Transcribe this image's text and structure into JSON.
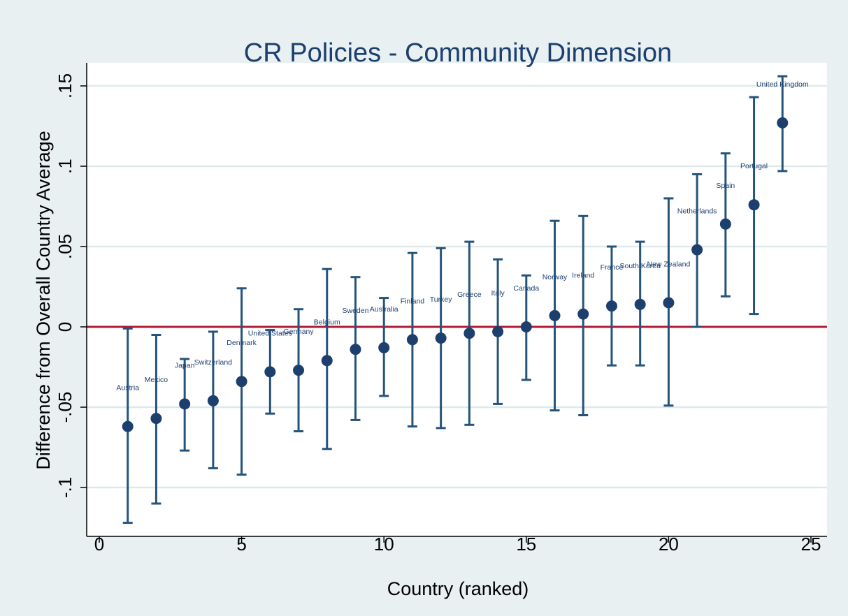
{
  "chart_data": {
    "type": "scatter",
    "title": "CR Policies - Community Dimension",
    "xlabel": "Country (ranked)",
    "ylabel": "Difference from Overall Country Average",
    "xlim": [
      0,
      25
    ],
    "ylim": [
      -0.13,
      0.165
    ],
    "x_ticks": [
      0,
      5,
      10,
      15,
      20,
      25
    ],
    "x_tick_labels": [
      "0",
      "5",
      "10",
      "15",
      "20",
      "25"
    ],
    "y_ticks": [
      -0.1,
      -0.05,
      0,
      0.05,
      0.1,
      0.15
    ],
    "y_tick_labels": [
      "-.1",
      "-.05",
      "0",
      ".05",
      ".1",
      ".15"
    ],
    "grid": true,
    "reference_line": 0,
    "points": [
      {
        "x": 1,
        "label": "Austria",
        "y": -0.062,
        "lo": -0.122,
        "hi": -0.001
      },
      {
        "x": 2,
        "label": "Mexico",
        "y": -0.057,
        "lo": -0.11,
        "hi": -0.005
      },
      {
        "x": 3,
        "label": "Japan",
        "y": -0.048,
        "lo": -0.077,
        "hi": -0.02
      },
      {
        "x": 4,
        "label": "Switzerland",
        "y": -0.046,
        "lo": -0.088,
        "hi": -0.003
      },
      {
        "x": 5,
        "label": "Denmark",
        "y": -0.034,
        "lo": -0.092,
        "hi": 0.024
      },
      {
        "x": 6,
        "label": "United States",
        "y": -0.028,
        "lo": -0.054,
        "hi": -0.002
      },
      {
        "x": 7,
        "label": "Germany",
        "y": -0.027,
        "lo": -0.065,
        "hi": 0.011
      },
      {
        "x": 8,
        "label": "Belgium",
        "y": -0.021,
        "lo": -0.076,
        "hi": 0.036
      },
      {
        "x": 9,
        "label": "Sweden",
        "y": -0.014,
        "lo": -0.058,
        "hi": 0.031
      },
      {
        "x": 10,
        "label": "Australia",
        "y": -0.013,
        "lo": -0.043,
        "hi": 0.018
      },
      {
        "x": 11,
        "label": "Finland",
        "y": -0.008,
        "lo": -0.062,
        "hi": 0.046
      },
      {
        "x": 12,
        "label": "Turkey",
        "y": -0.007,
        "lo": -0.063,
        "hi": 0.049
      },
      {
        "x": 13,
        "label": "Greece",
        "y": -0.004,
        "lo": -0.061,
        "hi": 0.053
      },
      {
        "x": 14,
        "label": "Italy",
        "y": -0.003,
        "lo": -0.048,
        "hi": 0.042
      },
      {
        "x": 15,
        "label": "Canada",
        "y": 0.0,
        "lo": -0.033,
        "hi": 0.032
      },
      {
        "x": 16,
        "label": "Norway",
        "y": 0.007,
        "lo": -0.052,
        "hi": 0.066
      },
      {
        "x": 17,
        "label": "Ireland",
        "y": 0.008,
        "lo": -0.055,
        "hi": 0.069
      },
      {
        "x": 18,
        "label": "France",
        "y": 0.013,
        "lo": -0.024,
        "hi": 0.05
      },
      {
        "x": 19,
        "label": "South Korea",
        "y": 0.014,
        "lo": -0.024,
        "hi": 0.053
      },
      {
        "x": 20,
        "label": "New Zealand",
        "y": 0.015,
        "lo": -0.049,
        "hi": 0.08
      },
      {
        "x": 21,
        "label": "Netherlands",
        "y": 0.048,
        "lo": 0.0,
        "hi": 0.095
      },
      {
        "x": 22,
        "label": "Spain",
        "y": 0.064,
        "lo": 0.019,
        "hi": 0.108
      },
      {
        "x": 23,
        "label": "Portugal",
        "y": 0.076,
        "lo": 0.008,
        "hi": 0.143
      },
      {
        "x": 24,
        "label": "United Kingdom",
        "y": 0.127,
        "lo": 0.097,
        "hi": 0.156
      }
    ],
    "colors": {
      "background": "#e8f0f2",
      "plot_background": "#ffffff",
      "marker": "#1c3f6e",
      "error_bar": "#25547b",
      "reference_line": "#b01c35",
      "grid": "#dfe9ec",
      "title": "#1c3f6e"
    }
  }
}
